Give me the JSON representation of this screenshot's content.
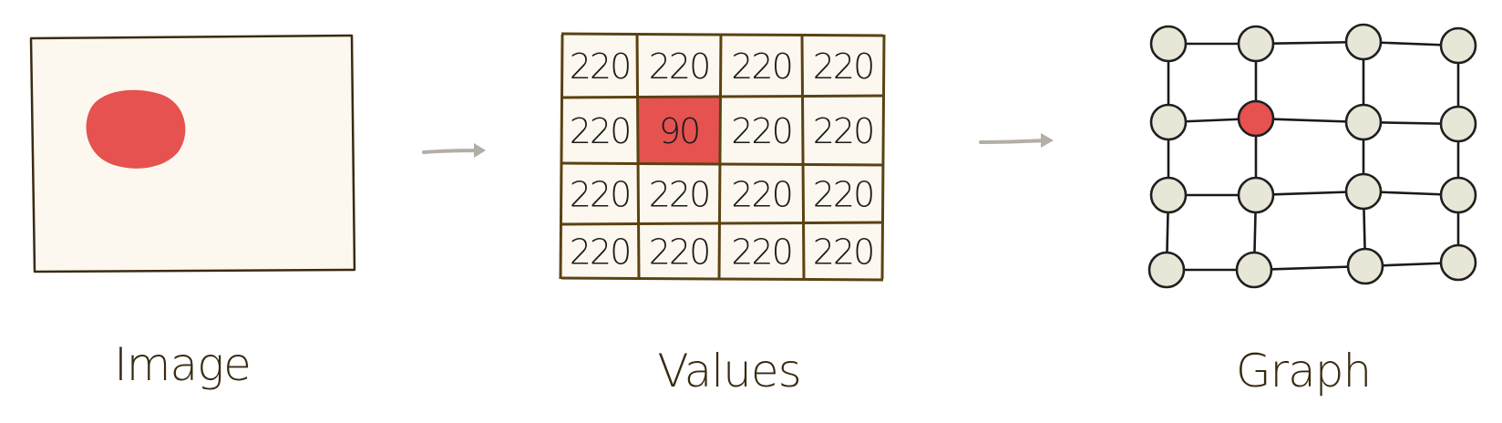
{
  "panels": {
    "image": {
      "label": "Image"
    },
    "values": {
      "label": "Values",
      "grid": [
        [
          "220",
          "220",
          "220",
          "220"
        ],
        [
          "220",
          "90",
          "220",
          "220"
        ],
        [
          "220",
          "220",
          "220",
          "220"
        ],
        [
          "220",
          "220",
          "220",
          "220"
        ]
      ],
      "highlight": {
        "row": 1,
        "col": 1
      }
    },
    "graph": {
      "label": "Graph",
      "rows": 4,
      "cols": 4,
      "highlight": {
        "row": 1,
        "col": 1
      }
    }
  },
  "colors": {
    "red": "#e5524f",
    "cream": "#fcf8ef",
    "frame": "#5b4213",
    "node": "#e8e6d6",
    "arrow": "#b3aea6",
    "ink": "#1a1a1a"
  }
}
